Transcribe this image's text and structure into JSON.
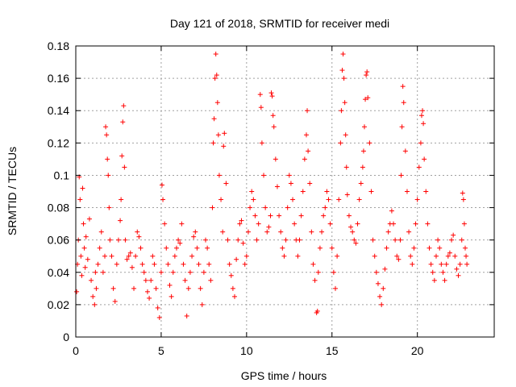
{
  "chart_data": {
    "type": "scatter",
    "title": "Day 121 of 2018, SRMTID for receiver medi",
    "xlabel": "GPS time / hours",
    "ylabel": "SRMTID / TECUs",
    "xlim": [
      0,
      24.5
    ],
    "ylim": [
      0,
      0.18
    ],
    "x_ticks": [
      0,
      5,
      10,
      15,
      20
    ],
    "x_tick_labels": [
      "0",
      "5",
      "10",
      "15",
      "20"
    ],
    "y_ticks": [
      0,
      0.02,
      0.04,
      0.06,
      0.08,
      0.1,
      0.12,
      0.14,
      0.16,
      0.18
    ],
    "y_tick_labels": [
      "0",
      "0.02",
      "0.04",
      "0.06",
      "0.08",
      "0.1",
      "0.12",
      "0.14",
      "0.16",
      "0.18"
    ],
    "grid": true,
    "marker": "+",
    "color": "#ff0000",
    "series": [
      {
        "name": "SRMTID",
        "points": [
          [
            0.05,
            0.028
          ],
          [
            0.1,
            0.045
          ],
          [
            0.15,
            0.06
          ],
          [
            0.2,
            0.099
          ],
          [
            0.25,
            0.085
          ],
          [
            0.3,
            0.05
          ],
          [
            0.35,
            0.038
          ],
          [
            0.4,
            0.092
          ],
          [
            0.45,
            0.07
          ],
          [
            0.5,
            0.055
          ],
          [
            0.55,
            0.043
          ],
          [
            0.6,
            0.062
          ],
          [
            0.7,
            0.048
          ],
          [
            0.8,
            0.073
          ],
          [
            0.9,
            0.035
          ],
          [
            1.0,
            0.025
          ],
          [
            1.1,
            0.02
          ],
          [
            1.15,
            0.04
          ],
          [
            1.2,
            0.03
          ],
          [
            1.3,
            0.045
          ],
          [
            1.4,
            0.055
          ],
          [
            1.5,
            0.065
          ],
          [
            1.6,
            0.04
          ],
          [
            1.7,
            0.05
          ],
          [
            1.75,
            0.13
          ],
          [
            1.8,
            0.125
          ],
          [
            1.85,
            0.11
          ],
          [
            1.9,
            0.1
          ],
          [
            1.95,
            0.08
          ],
          [
            2.0,
            0.06
          ],
          [
            2.1,
            0.05
          ],
          [
            2.2,
            0.03
          ],
          [
            2.3,
            0.022
          ],
          [
            2.4,
            0.045
          ],
          [
            2.5,
            0.06
          ],
          [
            2.6,
            0.072
          ],
          [
            2.65,
            0.085
          ],
          [
            2.7,
            0.112
          ],
          [
            2.75,
            0.133
          ],
          [
            2.8,
            0.143
          ],
          [
            2.85,
            0.105
          ],
          [
            2.9,
            0.06
          ],
          [
            3.0,
            0.048
          ],
          [
            3.1,
            0.05
          ],
          [
            3.2,
            0.052
          ],
          [
            3.3,
            0.043
          ],
          [
            3.4,
            0.03
          ],
          [
            3.5,
            0.05
          ],
          [
            3.6,
            0.065
          ],
          [
            3.7,
            0.062
          ],
          [
            3.8,
            0.055
          ],
          [
            3.9,
            0.045
          ],
          [
            4.0,
            0.04
          ],
          [
            4.1,
            0.035
          ],
          [
            4.2,
            0.028
          ],
          [
            4.3,
            0.024
          ],
          [
            4.4,
            0.035
          ],
          [
            4.5,
            0.05
          ],
          [
            4.6,
            0.045
          ],
          [
            4.7,
            0.03
          ],
          [
            4.8,
            0.018
          ],
          [
            4.9,
            0.012
          ],
          [
            5.0,
            0.04
          ],
          [
            5.05,
            0.094
          ],
          [
            5.1,
            0.085
          ],
          [
            5.2,
            0.07
          ],
          [
            5.3,
            0.055
          ],
          [
            5.4,
            0.045
          ],
          [
            5.5,
            0.032
          ],
          [
            5.6,
            0.025
          ],
          [
            5.7,
            0.04
          ],
          [
            5.8,
            0.05
          ],
          [
            5.9,
            0.055
          ],
          [
            6.0,
            0.06
          ],
          [
            6.1,
            0.058
          ],
          [
            6.2,
            0.07
          ],
          [
            6.3,
            0.045
          ],
          [
            6.4,
            0.035
          ],
          [
            6.5,
            0.013
          ],
          [
            6.6,
            0.03
          ],
          [
            6.7,
            0.04
          ],
          [
            6.8,
            0.05
          ],
          [
            6.9,
            0.062
          ],
          [
            7.0,
            0.065
          ],
          [
            7.1,
            0.055
          ],
          [
            7.2,
            0.045
          ],
          [
            7.3,
            0.03
          ],
          [
            7.4,
            0.02
          ],
          [
            7.5,
            0.04
          ],
          [
            7.6,
            0.06
          ],
          [
            7.7,
            0.055
          ],
          [
            7.8,
            0.045
          ],
          [
            7.9,
            0.035
          ],
          [
            8.0,
            0.08
          ],
          [
            8.05,
            0.12
          ],
          [
            8.1,
            0.135
          ],
          [
            8.15,
            0.16
          ],
          [
            8.2,
            0.175
          ],
          [
            8.25,
            0.162
          ],
          [
            8.3,
            0.145
          ],
          [
            8.35,
            0.125
          ],
          [
            8.4,
            0.1
          ],
          [
            8.5,
            0.085
          ],
          [
            8.6,
            0.065
          ],
          [
            8.65,
            0.118
          ],
          [
            8.7,
            0.126
          ],
          [
            8.8,
            0.095
          ],
          [
            8.9,
            0.06
          ],
          [
            9.0,
            0.045
          ],
          [
            9.1,
            0.038
          ],
          [
            9.2,
            0.03
          ],
          [
            9.3,
            0.025
          ],
          [
            9.4,
            0.048
          ],
          [
            9.5,
            0.06
          ],
          [
            9.6,
            0.07
          ],
          [
            9.7,
            0.072
          ],
          [
            9.8,
            0.058
          ],
          [
            9.9,
            0.045
          ],
          [
            10.0,
            0.05
          ],
          [
            10.1,
            0.065
          ],
          [
            10.2,
            0.08
          ],
          [
            10.3,
            0.09
          ],
          [
            10.4,
            0.085
          ],
          [
            10.5,
            0.075
          ],
          [
            10.6,
            0.06
          ],
          [
            10.7,
            0.07
          ],
          [
            10.8,
            0.15
          ],
          [
            10.85,
            0.142
          ],
          [
            10.9,
            0.12
          ],
          [
            11.0,
            0.1
          ],
          [
            11.1,
            0.08
          ],
          [
            11.2,
            0.065
          ],
          [
            11.3,
            0.068
          ],
          [
            11.4,
            0.075
          ],
          [
            11.45,
            0.151
          ],
          [
            11.5,
            0.149
          ],
          [
            11.55,
            0.137
          ],
          [
            11.6,
            0.13
          ],
          [
            11.7,
            0.11
          ],
          [
            11.8,
            0.093
          ],
          [
            11.9,
            0.075
          ],
          [
            12.0,
            0.065
          ],
          [
            12.1,
            0.055
          ],
          [
            12.2,
            0.05
          ],
          [
            12.3,
            0.06
          ],
          [
            12.4,
            0.08
          ],
          [
            12.5,
            0.1
          ],
          [
            12.6,
            0.095
          ],
          [
            12.7,
            0.085
          ],
          [
            12.8,
            0.07
          ],
          [
            12.9,
            0.06
          ],
          [
            13.0,
            0.05
          ],
          [
            13.1,
            0.06
          ],
          [
            13.2,
            0.075
          ],
          [
            13.3,
            0.09
          ],
          [
            13.4,
            0.11
          ],
          [
            13.5,
            0.125
          ],
          [
            13.55,
            0.14
          ],
          [
            13.6,
            0.115
          ],
          [
            13.7,
            0.095
          ],
          [
            13.8,
            0.065
          ],
          [
            13.9,
            0.045
          ],
          [
            14.0,
            0.035
          ],
          [
            14.1,
            0.015
          ],
          [
            14.15,
            0.016
          ],
          [
            14.2,
            0.04
          ],
          [
            14.3,
            0.055
          ],
          [
            14.4,
            0.065
          ],
          [
            14.5,
            0.075
          ],
          [
            14.6,
            0.08
          ],
          [
            14.7,
            0.09
          ],
          [
            14.8,
            0.085
          ],
          [
            14.9,
            0.07
          ],
          [
            15.0,
            0.055
          ],
          [
            15.1,
            0.04
          ],
          [
            15.2,
            0.03
          ],
          [
            15.3,
            0.05
          ],
          [
            15.4,
            0.085
          ],
          [
            15.5,
            0.12
          ],
          [
            15.55,
            0.14
          ],
          [
            15.6,
            0.165
          ],
          [
            15.65,
            0.175
          ],
          [
            15.7,
            0.16
          ],
          [
            15.75,
            0.145
          ],
          [
            15.8,
            0.125
          ],
          [
            15.85,
            0.105
          ],
          [
            15.9,
            0.088
          ],
          [
            16.0,
            0.075
          ],
          [
            16.1,
            0.068
          ],
          [
            16.2,
            0.065
          ],
          [
            16.3,
            0.06
          ],
          [
            16.4,
            0.058
          ],
          [
            16.5,
            0.07
          ],
          [
            16.6,
            0.085
          ],
          [
            16.7,
            0.095
          ],
          [
            16.8,
            0.105
          ],
          [
            16.85,
            0.115
          ],
          [
            16.9,
            0.13
          ],
          [
            16.95,
            0.147
          ],
          [
            17.0,
            0.162
          ],
          [
            17.05,
            0.164
          ],
          [
            17.1,
            0.148
          ],
          [
            17.2,
            0.12
          ],
          [
            17.3,
            0.09
          ],
          [
            17.4,
            0.06
          ],
          [
            17.5,
            0.05
          ],
          [
            17.6,
            0.04
          ],
          [
            17.7,
            0.033
          ],
          [
            17.8,
            0.025
          ],
          [
            17.9,
            0.02
          ],
          [
            18.0,
            0.03
          ],
          [
            18.1,
            0.042
          ],
          [
            18.2,
            0.055
          ],
          [
            18.3,
            0.065
          ],
          [
            18.4,
            0.07
          ],
          [
            18.5,
            0.078
          ],
          [
            18.6,
            0.07
          ],
          [
            18.7,
            0.06
          ],
          [
            18.8,
            0.05
          ],
          [
            18.9,
            0.048
          ],
          [
            19.0,
            0.06
          ],
          [
            19.05,
            0.1
          ],
          [
            19.1,
            0.13
          ],
          [
            19.15,
            0.155
          ],
          [
            19.2,
            0.145
          ],
          [
            19.3,
            0.115
          ],
          [
            19.4,
            0.09
          ],
          [
            19.5,
            0.065
          ],
          [
            19.6,
            0.05
          ],
          [
            19.7,
            0.045
          ],
          [
            19.8,
            0.055
          ],
          [
            19.9,
            0.07
          ],
          [
            20.0,
            0.085
          ],
          [
            20.1,
            0.105
          ],
          [
            20.2,
            0.12
          ],
          [
            20.25,
            0.137
          ],
          [
            20.3,
            0.14
          ],
          [
            20.35,
            0.132
          ],
          [
            20.4,
            0.11
          ],
          [
            20.5,
            0.09
          ],
          [
            20.6,
            0.07
          ],
          [
            20.7,
            0.055
          ],
          [
            20.8,
            0.045
          ],
          [
            20.9,
            0.04
          ],
          [
            21.0,
            0.035
          ],
          [
            21.1,
            0.05
          ],
          [
            21.2,
            0.06
          ],
          [
            21.3,
            0.055
          ],
          [
            21.4,
            0.045
          ],
          [
            21.5,
            0.04
          ],
          [
            21.6,
            0.035
          ],
          [
            21.7,
            0.045
          ],
          [
            21.8,
            0.05
          ],
          [
            21.9,
            0.052
          ],
          [
            22.0,
            0.06
          ],
          [
            22.1,
            0.063
          ],
          [
            22.2,
            0.05
          ],
          [
            22.3,
            0.042
          ],
          [
            22.4,
            0.038
          ],
          [
            22.5,
            0.045
          ],
          [
            22.6,
            0.06
          ],
          [
            22.65,
            0.089
          ],
          [
            22.7,
            0.085
          ],
          [
            22.75,
            0.07
          ],
          [
            22.8,
            0.055
          ],
          [
            22.85,
            0.05
          ],
          [
            22.9,
            0.045
          ]
        ]
      }
    ]
  }
}
